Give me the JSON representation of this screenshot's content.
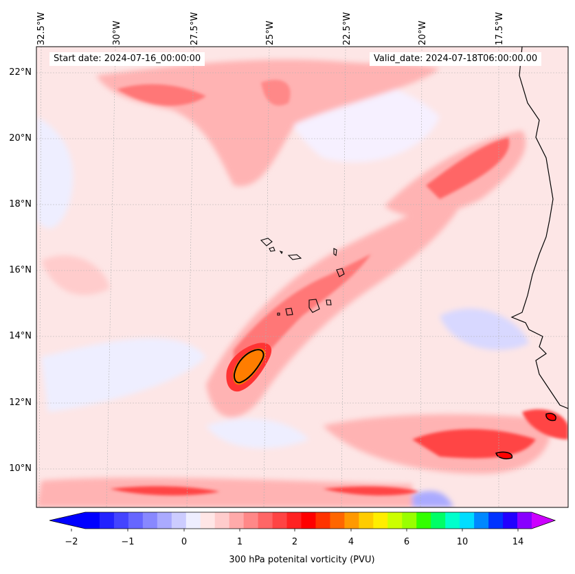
{
  "header": {
    "start_date": "Start date: 2024-07-16_00:00:00",
    "valid_date": "Valid_date: 2024-07-18T06:00:00.00"
  },
  "map": {
    "longitude_labels": [
      "32.5°W",
      "30°W",
      "27.5°W",
      "25°W",
      "22.5°W",
      "20°W",
      "17.5°W"
    ],
    "latitude_labels": [
      "22°N",
      "20°N",
      "18°N",
      "16°N",
      "14°N",
      "12°N",
      "10°N"
    ],
    "colors": {
      "background_band": "#fde6e6",
      "light_blue": "#eeeeff",
      "blue": "#b7b7ff",
      "pink": "#ffb3b3",
      "red": "#ff6666",
      "strong_red": "#ff2a2a",
      "orange": "#ff7d00"
    }
  },
  "colorbar": {
    "label": "300 hPa potenital vorticity (PVU)",
    "tick_labels": [
      "−2",
      "−1",
      "0",
      "1",
      "2",
      "4",
      "6",
      "10",
      "14"
    ],
    "colors": [
      "#0000ff",
      "#2222ff",
      "#4444ff",
      "#6666ff",
      "#8888ff",
      "#aaaaff",
      "#ccccff",
      "#eeeeff",
      "#ffe6e6",
      "#ffcccc",
      "#ffaaaa",
      "#ff8888",
      "#ff6666",
      "#ff4444",
      "#ff2222",
      "#ff0000",
      "#ff3300",
      "#ff6600",
      "#ff9900",
      "#ffcc00",
      "#ffee00",
      "#ccff00",
      "#99ff00",
      "#33ff00",
      "#00ff66",
      "#00ffcc",
      "#00ddff",
      "#0088ff",
      "#0033ff",
      "#2200ff",
      "#8800ff"
    ],
    "extend_low_color": "#0000ff",
    "extend_high_color": "#cc00ff"
  }
}
